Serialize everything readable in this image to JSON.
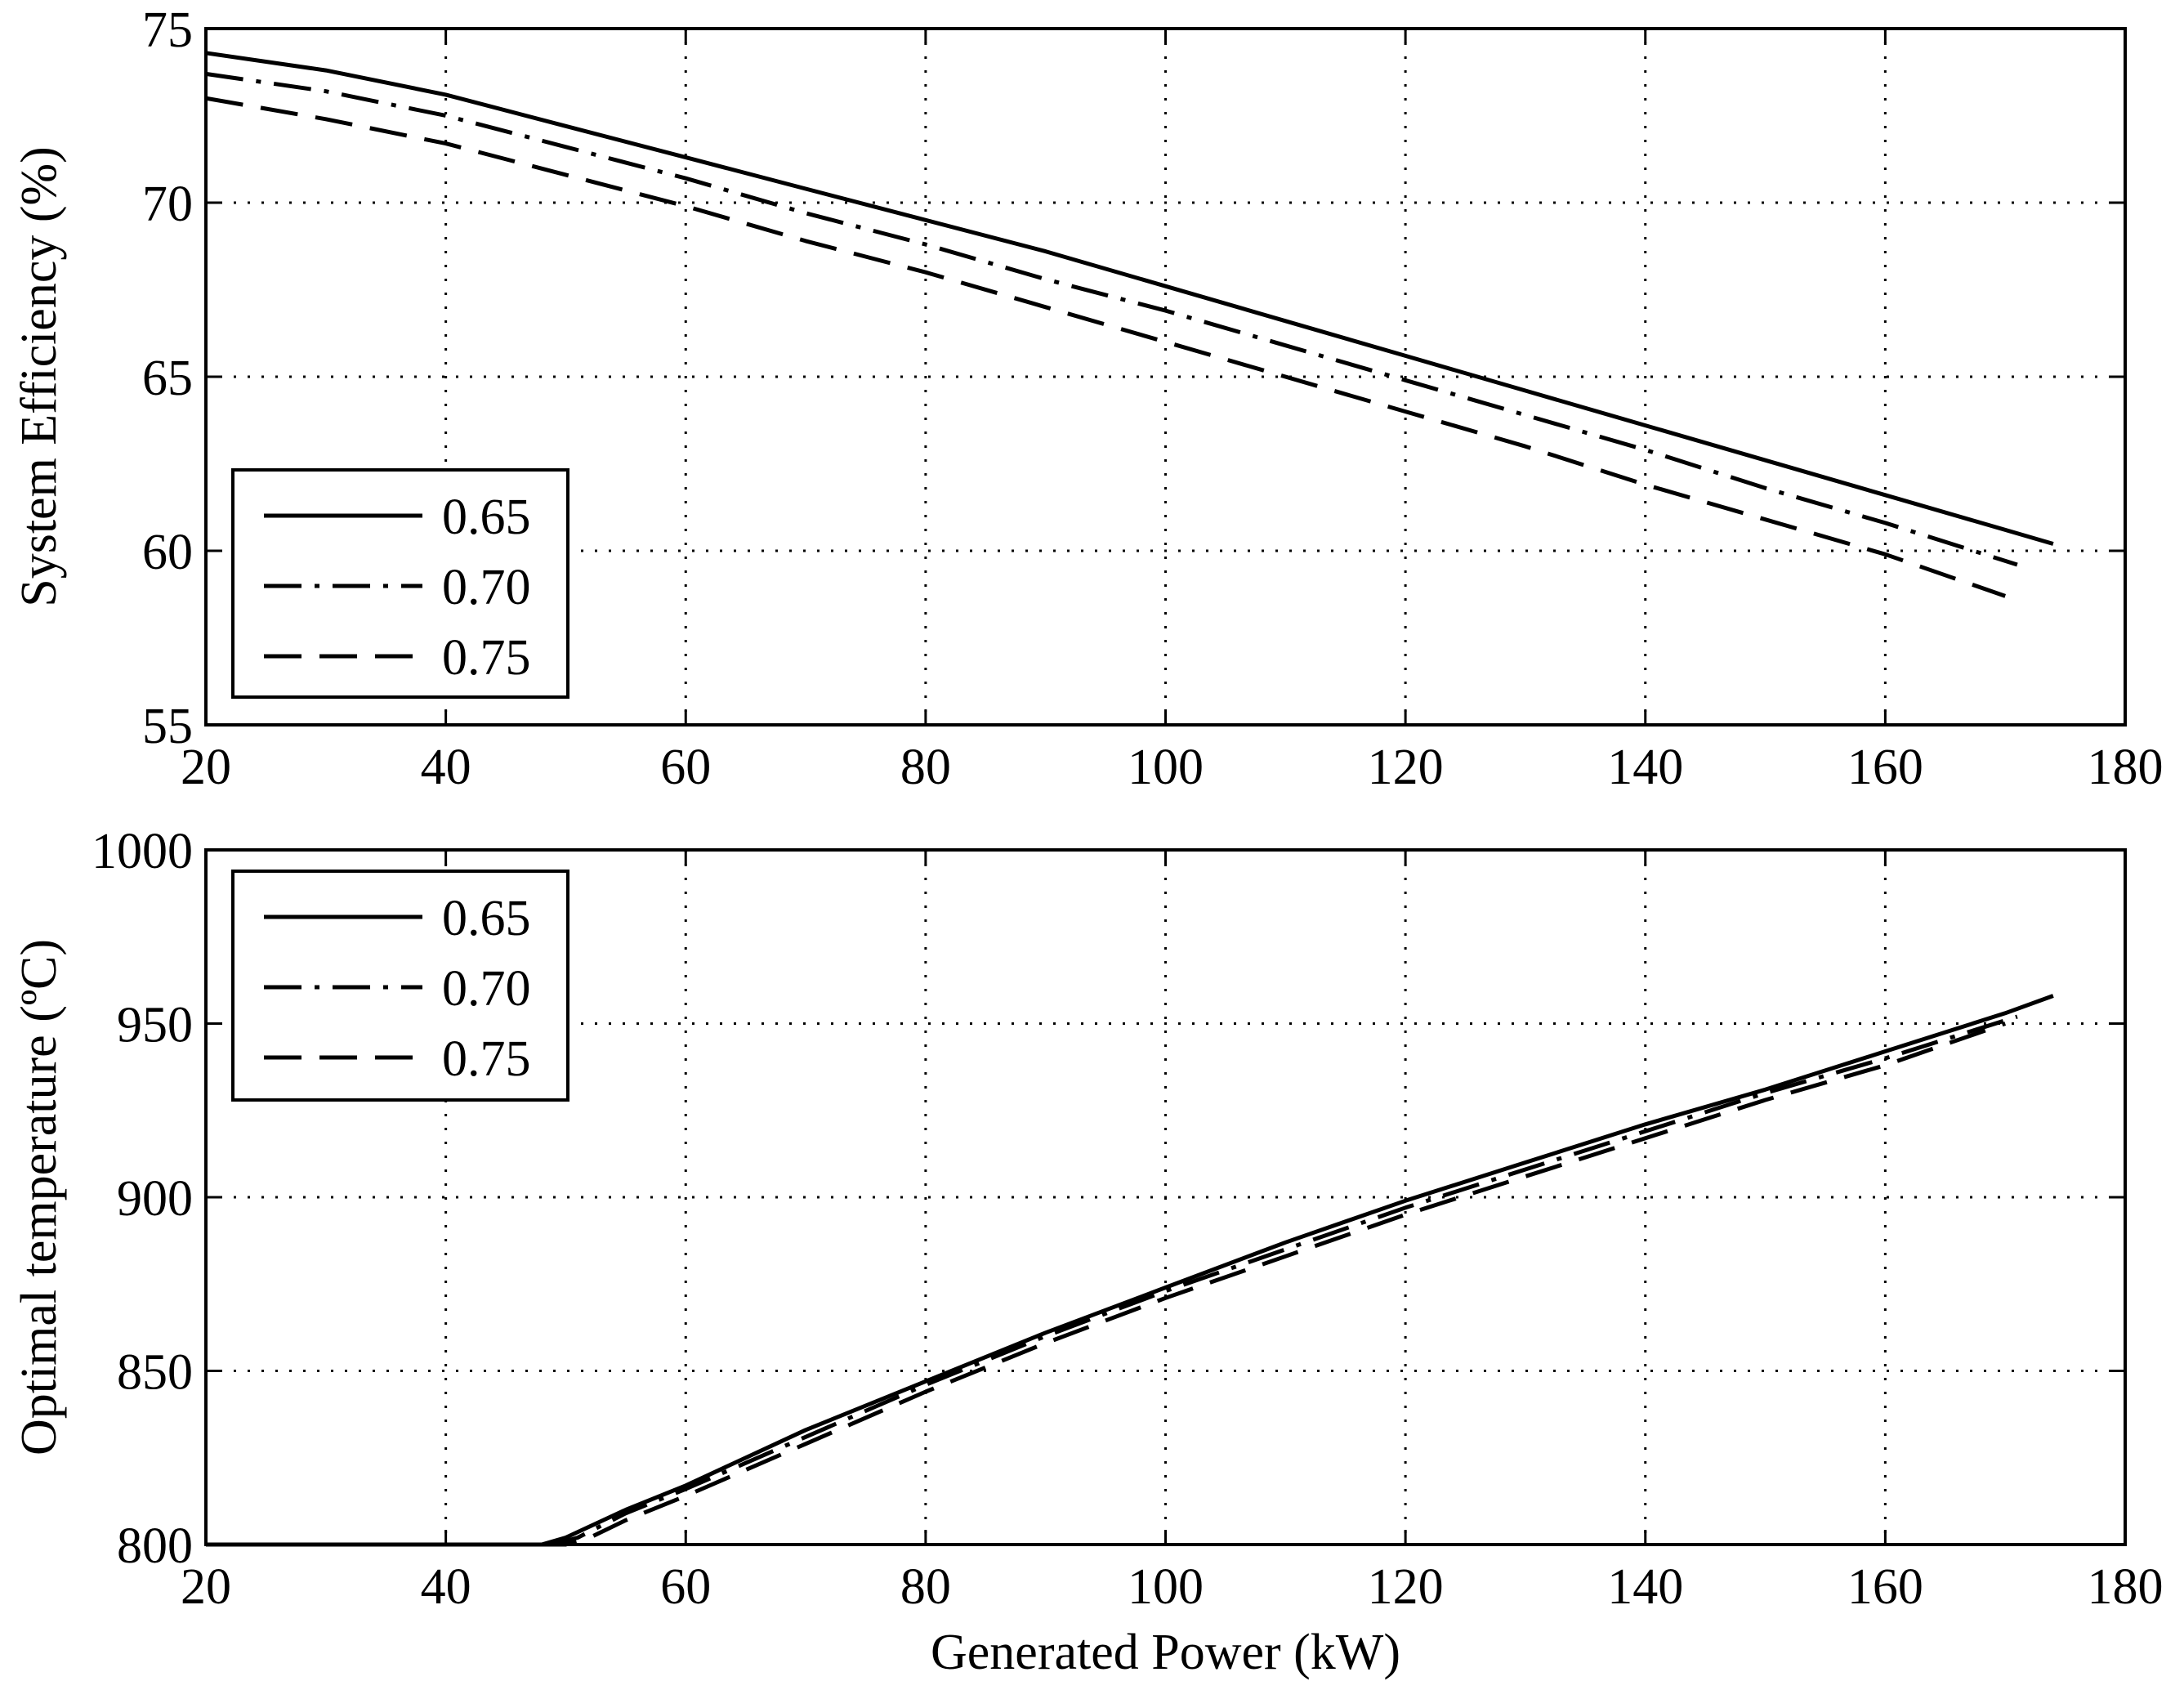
{
  "chart_data": [
    {
      "type": "line",
      "xlabel": "",
      "ylabel": "System Efficiency (%)",
      "xlim": [
        20,
        180
      ],
      "ylim": [
        55,
        75
      ],
      "xticks": [
        "20",
        "40",
        "60",
        "80",
        "100",
        "120",
        "140",
        "160",
        "180"
      ],
      "yticks": [
        "55",
        "60",
        "65",
        "70",
        "75"
      ],
      "grid": true,
      "legend": "bottom-left",
      "series": [
        {
          "name": "0.65",
          "style": "solid",
          "x": [
            20,
            30,
            40,
            50,
            60,
            70,
            80,
            90,
            100,
            110,
            120,
            130,
            140,
            150,
            160,
            170,
            174
          ],
          "y": [
            74.3,
            73.8,
            73.1,
            72.2,
            71.3,
            70.4,
            69.5,
            68.6,
            67.6,
            66.6,
            65.6,
            64.6,
            63.6,
            62.6,
            61.6,
            60.6,
            60.2
          ]
        },
        {
          "name": "0.70",
          "style": "dashdot",
          "x": [
            20,
            30,
            40,
            50,
            60,
            70,
            80,
            90,
            100,
            110,
            120,
            130,
            140,
            150,
            160,
            171
          ],
          "y": [
            73.7,
            73.2,
            72.5,
            71.6,
            70.7,
            69.7,
            68.8,
            67.8,
            66.9,
            65.9,
            64.9,
            63.9,
            62.9,
            61.8,
            60.8,
            59.6
          ]
        },
        {
          "name": "0.75",
          "style": "dashed",
          "x": [
            20,
            30,
            40,
            50,
            60,
            70,
            80,
            90,
            100,
            110,
            120,
            130,
            140,
            150,
            160,
            170
          ],
          "y": [
            73.0,
            72.4,
            71.7,
            70.8,
            69.9,
            68.9,
            68.0,
            67.0,
            66.0,
            65.0,
            64.0,
            63.0,
            61.9,
            60.9,
            59.9,
            58.7
          ]
        }
      ]
    },
    {
      "type": "line",
      "xlabel": "Generated Power (kW)",
      "ylabel": "Optimal temperature (ºC)",
      "xlim": [
        20,
        180
      ],
      "ylim": [
        800,
        1000
      ],
      "xticks": [
        "20",
        "40",
        "60",
        "80",
        "100",
        "120",
        "140",
        "160",
        "180"
      ],
      "yticks": [
        "800",
        "850",
        "900",
        "950",
        "1000"
      ],
      "grid": true,
      "legend": "top-left",
      "series": [
        {
          "name": "0.65",
          "style": "solid",
          "x": [
            20,
            30,
            40,
            48,
            50,
            55,
            60,
            70,
            80,
            90,
            100,
            110,
            120,
            130,
            140,
            150,
            160,
            170,
            174
          ],
          "y": [
            800,
            800,
            800,
            800,
            802,
            810,
            817,
            833,
            847,
            861,
            874,
            887,
            899,
            910,
            921,
            931,
            942,
            953,
            958
          ]
        },
        {
          "name": "0.70",
          "style": "dashdot",
          "x": [
            20,
            30,
            40,
            49,
            51,
            55,
            60,
            70,
            80,
            90,
            100,
            110,
            120,
            130,
            140,
            150,
            160,
            171
          ],
          "y": [
            800,
            800,
            800,
            800,
            802,
            809,
            816,
            831,
            846,
            860,
            873,
            885,
            897,
            908,
            919,
            930,
            940,
            952
          ]
        },
        {
          "name": "0.75",
          "style": "dashed",
          "x": [
            20,
            30,
            40,
            50,
            52,
            55,
            60,
            70,
            80,
            90,
            100,
            110,
            120,
            130,
            140,
            150,
            160,
            170
          ],
          "y": [
            800,
            800,
            800,
            800,
            802,
            807,
            814,
            829,
            844,
            858,
            871,
            883,
            895,
            906,
            917,
            928,
            938,
            950
          ]
        }
      ]
    }
  ]
}
